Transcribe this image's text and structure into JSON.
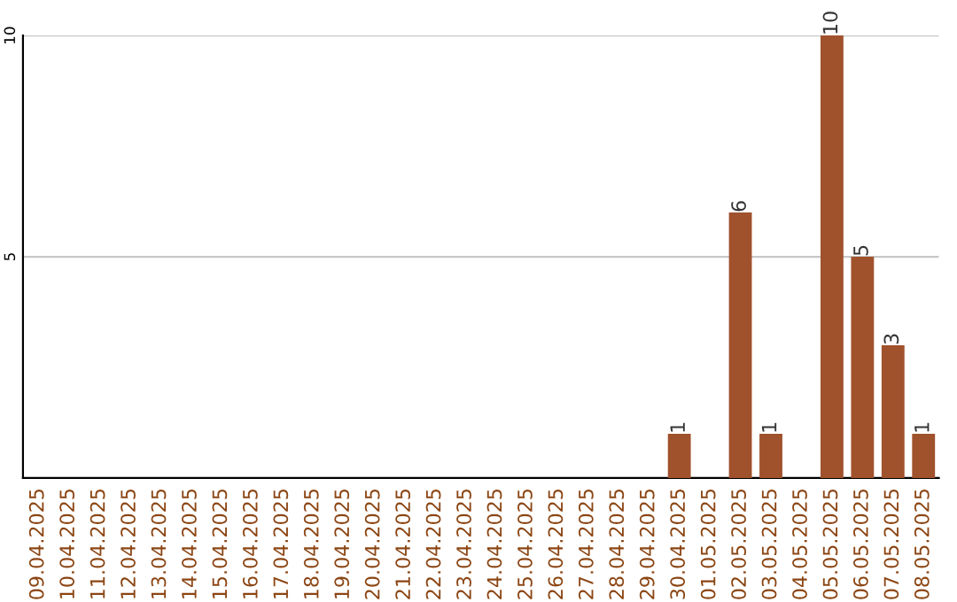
{
  "chart_data": {
    "type": "bar",
    "categories": [
      "09.04.2025",
      "10.04.2025",
      "11.04.2025",
      "12.04.2025",
      "13.04.2025",
      "14.04.2025",
      "15.04.2025",
      "16.04.2025",
      "17.04.2025",
      "18.04.2025",
      "19.04.2025",
      "20.04.2025",
      "21.04.2025",
      "22.04.2025",
      "23.04.2025",
      "24.04.2025",
      "25.04.2025",
      "26.04.2025",
      "27.04.2025",
      "28.04.2025",
      "29.04.2025",
      "30.04.2025",
      "01.05.2025",
      "02.05.2025",
      "03.05.2025",
      "04.05.2025",
      "05.05.2025",
      "06.05.2025",
      "07.05.2025",
      "08.05.2025"
    ],
    "values": [
      0,
      0,
      0,
      0,
      0,
      0,
      0,
      0,
      0,
      0,
      0,
      0,
      0,
      0,
      0,
      0,
      0,
      0,
      0,
      0,
      0,
      1,
      0,
      6,
      1,
      0,
      10,
      5,
      3,
      1
    ],
    "value_labels": [
      null,
      null,
      null,
      null,
      null,
      null,
      null,
      null,
      null,
      null,
      null,
      null,
      null,
      null,
      null,
      null,
      null,
      null,
      null,
      null,
      null,
      "1",
      null,
      "6",
      "1",
      null,
      "10",
      "5",
      "3",
      "1"
    ],
    "color": "#a0522d",
    "ylim": [
      0,
      10
    ],
    "yticks": [
      5,
      10
    ],
    "grid": "y"
  }
}
